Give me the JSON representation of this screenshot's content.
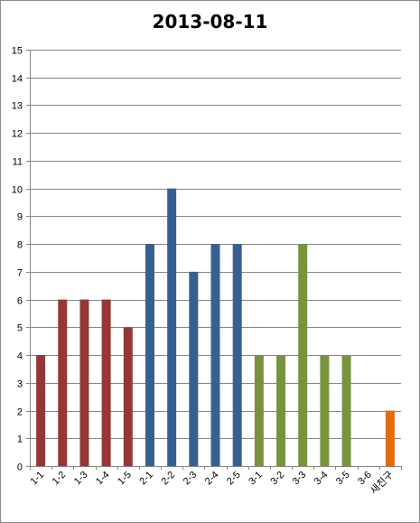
{
  "chart_data": {
    "type": "bar",
    "title": "2013-08-11",
    "categories": [
      "1-1",
      "1-2",
      "1-3",
      "1-4",
      "1-5",
      "2-1",
      "2-2",
      "2-3",
      "2-4",
      "2-5",
      "3-1",
      "3-2",
      "3-3",
      "3-4",
      "3-5",
      "3-6",
      "새친구"
    ],
    "values": [
      4,
      6,
      6,
      6,
      5,
      8,
      10,
      7,
      8,
      8,
      4,
      4,
      8,
      4,
      4,
      0,
      2
    ],
    "bar_colors": [
      "#953735",
      "#953735",
      "#953735",
      "#953735",
      "#953735",
      "#376092",
      "#376092",
      "#376092",
      "#376092",
      "#376092",
      "#77933c",
      "#77933c",
      "#77933c",
      "#77933c",
      "#77933c",
      "#77933c",
      "#e46c0a"
    ],
    "ylim": [
      0,
      15
    ],
    "yticks": [
      0,
      1,
      2,
      3,
      4,
      5,
      6,
      7,
      8,
      9,
      10,
      11,
      12,
      13,
      14,
      15
    ],
    "grid": true,
    "gridline_color": "#868686",
    "xlabel": "",
    "ylabel": ""
  }
}
